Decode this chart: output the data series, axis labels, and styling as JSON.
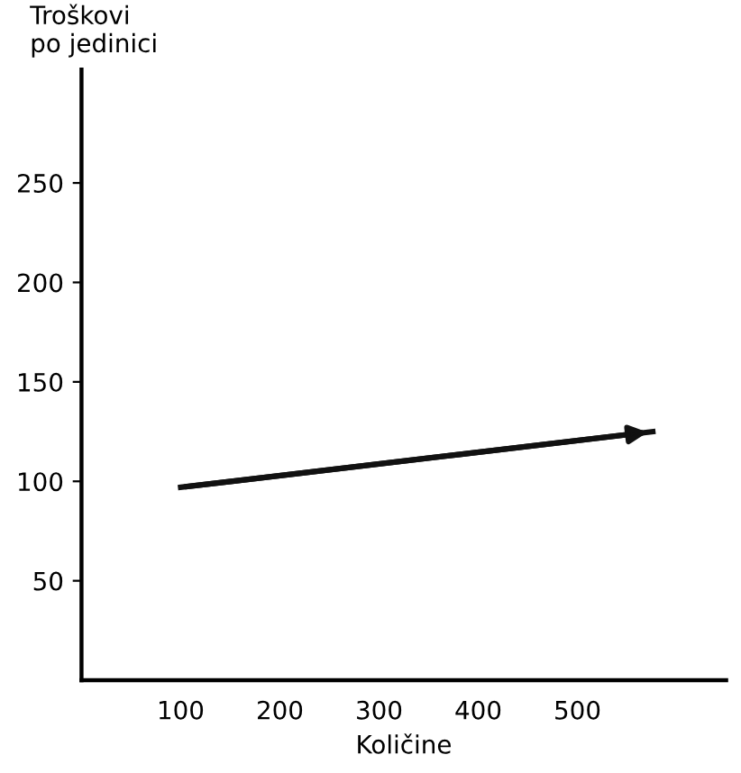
{
  "chart_data": {
    "type": "line",
    "xlabel": "Količine",
    "ylabel": "Troškovi\npo jedinici",
    "x": [
      100,
      576
    ],
    "series": [
      {
        "color": "#111111",
        "values": [
          97,
          125
        ]
      }
    ],
    "xlim": [
      0,
      650
    ],
    "ylim": [
      0,
      307
    ],
    "xticks": [
      100,
      200,
      300,
      400,
      500
    ],
    "yticks": [
      50,
      100,
      150,
      200,
      250
    ],
    "grid": false,
    "marker": "none",
    "line_style": "solid"
  }
}
